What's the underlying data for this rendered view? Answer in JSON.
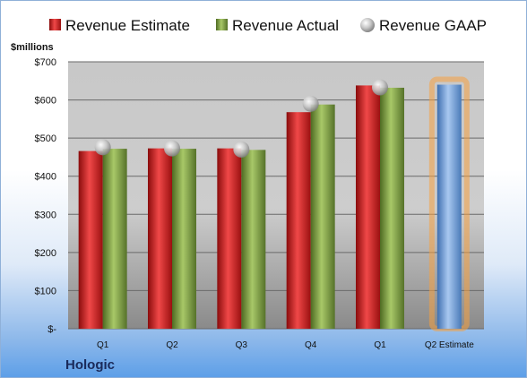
{
  "company": "Hologic",
  "chart_data": {
    "type": "bar",
    "ylabel": "$millions",
    "categories": [
      "Q1",
      "Q2",
      "Q3",
      "Q4",
      "Q1",
      "Q2 Estimate"
    ],
    "ylim": [
      0,
      700
    ],
    "yticks": [
      {
        "value": 0,
        "label": "$-"
      },
      {
        "value": 100,
        "label": "$100"
      },
      {
        "value": 200,
        "label": "$200"
      },
      {
        "value": 300,
        "label": "$300"
      },
      {
        "value": 400,
        "label": "$400"
      },
      {
        "value": 500,
        "label": "$500"
      },
      {
        "value": 600,
        "label": "$600"
      },
      {
        "value": 700,
        "label": "$700"
      }
    ],
    "grid": true,
    "legend": "top",
    "series": [
      {
        "name": "Revenue Estimate",
        "kind": "bar",
        "color": "#d42020",
        "values": [
          466,
          473,
          473,
          568,
          638,
          640
        ]
      },
      {
        "name": "Revenue Actual",
        "kind": "bar",
        "color": "#7ea040",
        "values": [
          472,
          472,
          469,
          588,
          632,
          null
        ]
      },
      {
        "name": "Revenue GAAP",
        "kind": "marker",
        "color": "#b8b8b8",
        "values": [
          476,
          473,
          470,
          590,
          633,
          null
        ]
      }
    ],
    "highlight_color": "#6fa0d8",
    "highlight_glow": "#f5a040",
    "highlight_index": 5
  }
}
